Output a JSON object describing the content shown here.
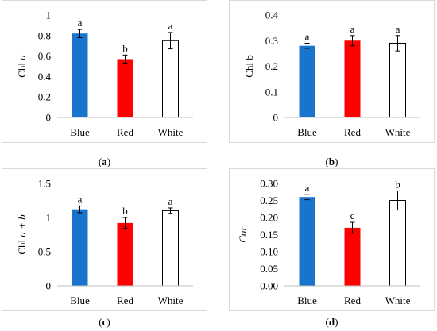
{
  "chart_data": [
    {
      "type": "bar",
      "panel": "a",
      "categories": [
        "Blue",
        "Red",
        "White"
      ],
      "values": [
        0.82,
        0.57,
        0.75
      ],
      "errors": [
        0.04,
        0.04,
        0.08
      ],
      "letters": [
        "a",
        "b",
        "a"
      ],
      "ylabel": "Chl a",
      "ylabel_prefix": "Chl ",
      "ylabel_italic": "a",
      "ylabel_suffix": "",
      "ylim": [
        0,
        1
      ],
      "yticks": [
        0,
        0.2,
        0.4,
        0.6,
        0.8,
        1
      ],
      "ytick_labels": [
        "0",
        "0.2",
        "0.4",
        "0.6",
        "0.8",
        "1"
      ],
      "colors": [
        "#1874cd",
        "#ff0000",
        "#ffffff"
      ],
      "grid": false
    },
    {
      "type": "bar",
      "panel": "b",
      "categories": [
        "Blue",
        "Red",
        "White"
      ],
      "values": [
        0.28,
        0.3,
        0.29
      ],
      "errors": [
        0.01,
        0.02,
        0.03
      ],
      "letters": [
        "a",
        "a",
        "a"
      ],
      "ylabel": "Chl b",
      "ylabel_prefix": "Chl b",
      "ylabel_italic": "",
      "ylabel_suffix": "",
      "ylim": [
        0,
        0.4
      ],
      "yticks": [
        0,
        0.1,
        0.2,
        0.3,
        0.4
      ],
      "ytick_labels": [
        "0",
        "0.1",
        "0.2",
        "0.3",
        "0.4"
      ],
      "colors": [
        "#1874cd",
        "#ff0000",
        "#ffffff"
      ],
      "grid": false
    },
    {
      "type": "bar",
      "panel": "c",
      "categories": [
        "Blue",
        "Red",
        "White"
      ],
      "values": [
        1.12,
        0.92,
        1.1
      ],
      "errors": [
        0.05,
        0.08,
        0.04
      ],
      "letters": [
        "a",
        "b",
        "a"
      ],
      "ylabel": "Chl a + b",
      "ylabel_prefix": "Chl ",
      "ylabel_italic": "a + b",
      "ylabel_suffix": "",
      "ylim": [
        0,
        1.5
      ],
      "yticks": [
        0,
        0.5,
        1,
        1.5
      ],
      "ytick_labels": [
        "0",
        "0.5",
        "1",
        "1.5"
      ],
      "colors": [
        "#1874cd",
        "#ff0000",
        "#ffffff"
      ],
      "grid": false
    },
    {
      "type": "bar",
      "panel": "d",
      "categories": [
        "Blue",
        "Red",
        "White"
      ],
      "values": [
        0.26,
        0.17,
        0.25
      ],
      "errors": [
        0.008,
        0.016,
        0.028
      ],
      "letters": [
        "a",
        "c",
        "b"
      ],
      "ylabel": "Car",
      "ylabel_prefix": "",
      "ylabel_italic": "Car",
      "ylabel_suffix": "",
      "ylim": [
        0,
        0.3
      ],
      "yticks": [
        0,
        0.05,
        0.1,
        0.15,
        0.2,
        0.25,
        0.3
      ],
      "ytick_labels": [
        "0.00",
        "0.05",
        "0.10",
        "0.15",
        "0.20",
        "0.25",
        "0.30"
      ],
      "colors": [
        "#1874cd",
        "#ff0000",
        "#ffffff"
      ],
      "grid": false
    }
  ],
  "captions": [
    "a",
    "b",
    "c",
    "d"
  ]
}
